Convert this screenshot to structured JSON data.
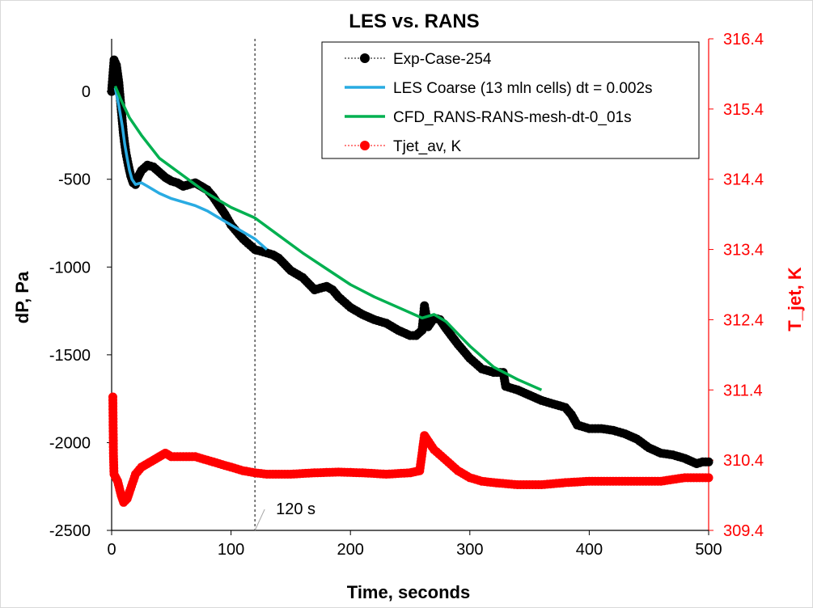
{
  "chart_data": {
    "type": "line",
    "title": "LES vs. RANS",
    "xlabel": "Time, seconds",
    "ylabel_left": "dP, Pa",
    "ylabel_right": "T_jet, K",
    "xlim": [
      0,
      500
    ],
    "ylim_left": [
      -2500,
      300
    ],
    "ylim_right": [
      309.4,
      316.4
    ],
    "x_ticks": [
      "0",
      "100",
      "200",
      "300",
      "400",
      "500"
    ],
    "y_ticks_left": [
      "0",
      "-500",
      "-1000",
      "-1500",
      "-2000",
      "-2500"
    ],
    "y_ticks_right": [
      "316.4",
      "315.4",
      "314.4",
      "313.4",
      "312.4",
      "311.4",
      "310.4",
      "309.4"
    ],
    "grid": false,
    "legend_position": "top-right",
    "annotation": {
      "text": "120 s",
      "x": 120
    },
    "series": [
      {
        "name": "Exp-Case-254",
        "axis": "left",
        "color": "#000000",
        "style": "dotted-with-markers",
        "points": [
          [
            0,
            0
          ],
          [
            2,
            180
          ],
          [
            4,
            150
          ],
          [
            6,
            50
          ],
          [
            8,
            -100
          ],
          [
            10,
            -250
          ],
          [
            12,
            -350
          ],
          [
            14,
            -420
          ],
          [
            16,
            -480
          ],
          [
            18,
            -520
          ],
          [
            20,
            -530
          ],
          [
            22,
            -490
          ],
          [
            25,
            -450
          ],
          [
            30,
            -420
          ],
          [
            35,
            -430
          ],
          [
            40,
            -460
          ],
          [
            45,
            -490
          ],
          [
            50,
            -510
          ],
          [
            55,
            -520
          ],
          [
            60,
            -540
          ],
          [
            65,
            -530
          ],
          [
            70,
            -520
          ],
          [
            75,
            -540
          ],
          [
            80,
            -560
          ],
          [
            85,
            -600
          ],
          [
            90,
            -650
          ],
          [
            95,
            -700
          ],
          [
            100,
            -760
          ],
          [
            110,
            -840
          ],
          [
            120,
            -900
          ],
          [
            130,
            -920
          ],
          [
            135,
            -930
          ],
          [
            140,
            -950
          ],
          [
            150,
            -1020
          ],
          [
            160,
            -1060
          ],
          [
            170,
            -1130
          ],
          [
            180,
            -1110
          ],
          [
            185,
            -1130
          ],
          [
            190,
            -1170
          ],
          [
            200,
            -1230
          ],
          [
            210,
            -1270
          ],
          [
            220,
            -1300
          ],
          [
            230,
            -1320
          ],
          [
            240,
            -1360
          ],
          [
            250,
            -1390
          ],
          [
            255,
            -1390
          ],
          [
            260,
            -1360
          ],
          [
            262,
            -1220
          ],
          [
            265,
            -1340
          ],
          [
            270,
            -1290
          ],
          [
            275,
            -1300
          ],
          [
            280,
            -1350
          ],
          [
            290,
            -1440
          ],
          [
            300,
            -1520
          ],
          [
            310,
            -1580
          ],
          [
            320,
            -1600
          ],
          [
            328,
            -1600
          ],
          [
            330,
            -1680
          ],
          [
            340,
            -1700
          ],
          [
            350,
            -1730
          ],
          [
            360,
            -1760
          ],
          [
            370,
            -1780
          ],
          [
            380,
            -1800
          ],
          [
            385,
            -1840
          ],
          [
            390,
            -1900
          ],
          [
            400,
            -1920
          ],
          [
            410,
            -1920
          ],
          [
            420,
            -1930
          ],
          [
            430,
            -1950
          ],
          [
            440,
            -1980
          ],
          [
            450,
            -2030
          ],
          [
            460,
            -2060
          ],
          [
            470,
            -2070
          ],
          [
            480,
            -2090
          ],
          [
            490,
            -2120
          ],
          [
            495,
            -2110
          ],
          [
            500,
            -2110
          ]
        ]
      },
      {
        "name": "LES Coarse (13 mln cells) dt = 0.002s",
        "axis": "left",
        "color": "#29abe2",
        "style": "line",
        "points": [
          [
            3,
            20
          ],
          [
            6,
            -80
          ],
          [
            9,
            -200
          ],
          [
            11,
            -300
          ],
          [
            13,
            -380
          ],
          [
            15,
            -450
          ],
          [
            17,
            -500
          ],
          [
            20,
            -530
          ],
          [
            25,
            -520
          ],
          [
            30,
            -540
          ],
          [
            40,
            -580
          ],
          [
            50,
            -610
          ],
          [
            60,
            -630
          ],
          [
            70,
            -650
          ],
          [
            80,
            -680
          ],
          [
            90,
            -720
          ],
          [
            100,
            -760
          ],
          [
            110,
            -800
          ],
          [
            120,
            -840
          ],
          [
            125,
            -870
          ],
          [
            130,
            -900
          ]
        ]
      },
      {
        "name": "CFD_RANS-RANS-mesh-dt-0_01s",
        "axis": "left",
        "color": "#00b050",
        "style": "line",
        "points": [
          [
            3,
            30
          ],
          [
            8,
            -50
          ],
          [
            15,
            -150
          ],
          [
            25,
            -250
          ],
          [
            40,
            -380
          ],
          [
            60,
            -480
          ],
          [
            80,
            -580
          ],
          [
            100,
            -660
          ],
          [
            120,
            -720
          ],
          [
            140,
            -820
          ],
          [
            160,
            -920
          ],
          [
            180,
            -1010
          ],
          [
            200,
            -1100
          ],
          [
            220,
            -1170
          ],
          [
            240,
            -1230
          ],
          [
            260,
            -1290
          ],
          [
            270,
            -1270
          ],
          [
            280,
            -1310
          ],
          [
            290,
            -1380
          ],
          [
            300,
            -1450
          ],
          [
            320,
            -1570
          ],
          [
            340,
            -1640
          ],
          [
            360,
            -1700
          ]
        ]
      },
      {
        "name": "Tjet_av, K",
        "axis": "right",
        "color": "#ff0000",
        "style": "dotted-with-markers",
        "points": [
          [
            1,
            311.3
          ],
          [
            1.5,
            310.5
          ],
          [
            2,
            310.2
          ],
          [
            5,
            310.1
          ],
          [
            8,
            309.9
          ],
          [
            10,
            309.8
          ],
          [
            13,
            309.85
          ],
          [
            15,
            309.95
          ],
          [
            20,
            310.2
          ],
          [
            25,
            310.3
          ],
          [
            30,
            310.35
          ],
          [
            35,
            310.4
          ],
          [
            40,
            310.45
          ],
          [
            45,
            310.5
          ],
          [
            50,
            310.45
          ],
          [
            60,
            310.45
          ],
          [
            70,
            310.45
          ],
          [
            80,
            310.4
          ],
          [
            90,
            310.35
          ],
          [
            100,
            310.3
          ],
          [
            110,
            310.25
          ],
          [
            120,
            310.22
          ],
          [
            130,
            310.2
          ],
          [
            150,
            310.2
          ],
          [
            170,
            310.22
          ],
          [
            190,
            310.23
          ],
          [
            210,
            310.22
          ],
          [
            230,
            310.2
          ],
          [
            250,
            310.22
          ],
          [
            258,
            310.25
          ],
          [
            260,
            310.5
          ],
          [
            262,
            310.75
          ],
          [
            264,
            310.7
          ],
          [
            270,
            310.55
          ],
          [
            280,
            310.4
          ],
          [
            290,
            310.25
          ],
          [
            300,
            310.15
          ],
          [
            310,
            310.1
          ],
          [
            320,
            310.08
          ],
          [
            340,
            310.05
          ],
          [
            360,
            310.05
          ],
          [
            380,
            310.08
          ],
          [
            400,
            310.1
          ],
          [
            420,
            310.1
          ],
          [
            440,
            310.1
          ],
          [
            460,
            310.1
          ],
          [
            480,
            310.15
          ],
          [
            500,
            310.15
          ]
        ]
      }
    ]
  }
}
